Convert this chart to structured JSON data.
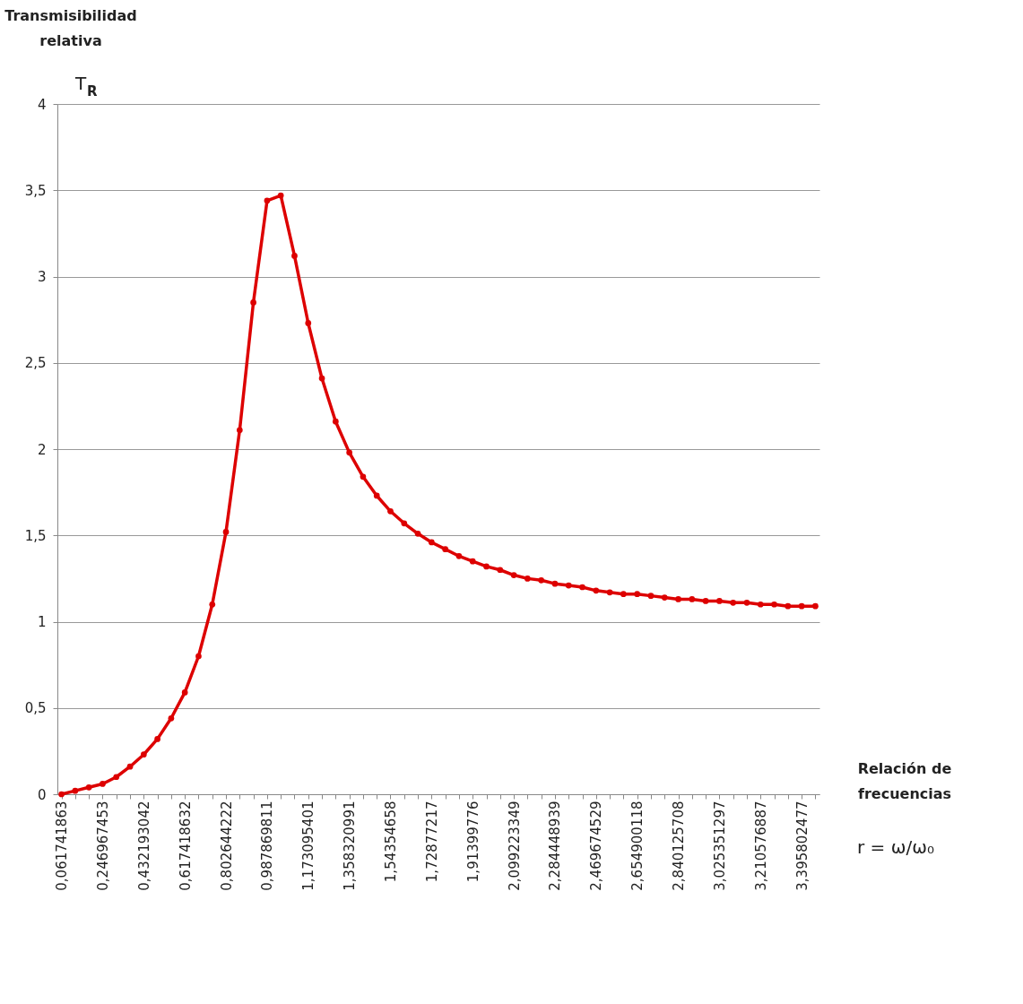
{
  "chart_data": {
    "type": "line",
    "title": "Transmisibilidad relativa",
    "ylabel": "T$_{R}$",
    "xlabel": "Relación de frecuencias",
    "annotations": [
      "r = ω/ω₀"
    ],
    "categories": [
      "0,061741863",
      null,
      null,
      "0,246967453",
      null,
      null,
      "0,432193042",
      null,
      null,
      "0,617418632",
      null,
      null,
      "0,802644222",
      null,
      null,
      "0,987869811",
      null,
      null,
      "1,173095401",
      null,
      null,
      "1,358320991",
      null,
      null,
      "1,54354658",
      null,
      null,
      "1,72877217",
      null,
      null,
      "1,91399776",
      null,
      null,
      "2,099223349",
      null,
      null,
      "2,284448939",
      null,
      null,
      "2,469674529",
      null,
      null,
      "2,654900118",
      null,
      null,
      "2,840125708",
      null,
      null,
      "3,025351297",
      null,
      null,
      "3,210576887",
      null,
      null,
      "3,395802477",
      null
    ],
    "series": [
      {
        "color": "#dd0000",
        "values": [
          0.0,
          0.02,
          0.04,
          0.06,
          0.1,
          0.16,
          0.23,
          0.32,
          0.44,
          0.59,
          0.8,
          1.1,
          1.52,
          2.11,
          2.85,
          3.44,
          3.47,
          3.12,
          2.73,
          2.41,
          2.16,
          1.98,
          1.84,
          1.73,
          1.64,
          1.57,
          1.51,
          1.46,
          1.42,
          1.38,
          1.35,
          1.32,
          1.3,
          1.27,
          1.25,
          1.24,
          1.22,
          1.21,
          1.2,
          1.18,
          1.17,
          1.16,
          1.16,
          1.15,
          1.14,
          1.13,
          1.13,
          1.12,
          1.12,
          1.11,
          1.11,
          1.1,
          1.1,
          1.09,
          1.09,
          1.09
        ]
      }
    ],
    "ylim": [
      0,
      4
    ],
    "yticks": [
      0,
      {
        "value": 0.5,
        "label": "0,5"
      },
      1,
      {
        "value": 1.5,
        "label": "1,5"
      },
      2,
      {
        "value": 2.5,
        "label": "2,5"
      },
      3,
      {
        "value": 3.5,
        "label": "3,5"
      },
      4
    ],
    "grid": "y",
    "legend": false,
    "marker": "circle",
    "line_style": "solid"
  }
}
